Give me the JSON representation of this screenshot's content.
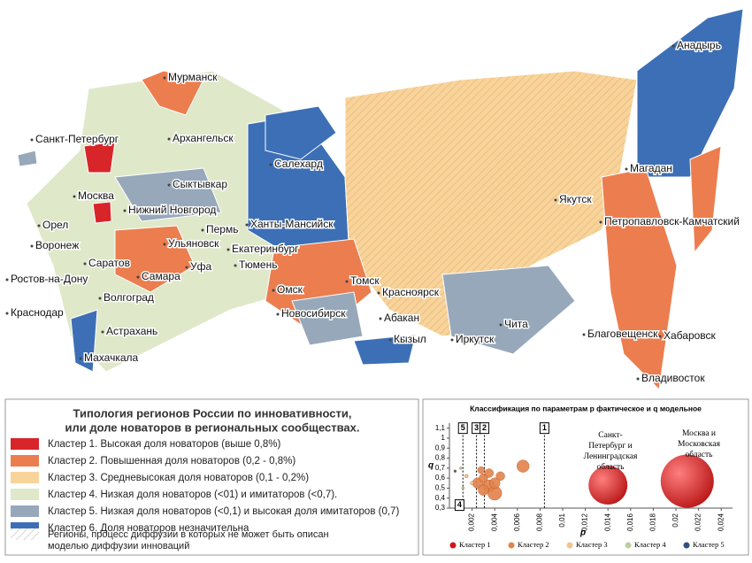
{
  "map_labels": [
    "Мурманск",
    "Санкт-Петербург",
    "Архангельск",
    "Салехард",
    "Анадырь",
    "Москва",
    "Сыктывкар",
    "Нижний Новгород",
    "Ханты-Мансийск",
    "Магадан",
    "Якутск",
    "Орел",
    "Пермь",
    "Воронеж",
    "Ульяновск",
    "Екатеринбург",
    "Петропавловск-Камчатский",
    "Саратов",
    "Уфа",
    "Тюмень",
    "Ростов-на-Дону",
    "Самара",
    "Омск",
    "Томск",
    "Волгоград",
    "Красноярск",
    "Краснодар",
    "Новосибирск",
    "Абакан",
    "Чита",
    "Астрахань",
    "Хабаровск",
    "Кызыл",
    "Иркутск",
    "Благовещенск",
    "Махачкала",
    "Владивосток"
  ],
  "legend": {
    "title_lines": [
      "Типология регионов России по инновативности,",
      "или доле новаторов в региональных сообществах."
    ],
    "items": [
      {
        "label": "Кластер 1. Высокая доля новаторов (выше 0,8%)",
        "color": "#d7252a"
      },
      {
        "label": "Кластер 2. Повышенная доля новаторов (0,2 - 0,8%)",
        "color": "#ec7d4f"
      },
      {
        "label": "Кластер 3. Средневысокая доля новаторов (0,1 - 0,2%)",
        "color": "#f8d49b"
      },
      {
        "label": "Кластер 4. Низкая доля новаторов (<01) и имитаторов (<0,7).",
        "color": "#dfe8c9"
      },
      {
        "label": "Кластер 5. Низкая доля новаторов (<0,1)  и высокая доля имитаторов (0,7)",
        "color": "#97a8bb"
      },
      {
        "label": "Кластер 6. Доля новаторов незначительна",
        "color": "#3d6fb6"
      }
    ],
    "hatched_lines": [
      "Регионы, процесс диффузии в которых не может быть описан",
      "моделью диффузии инноваций"
    ]
  },
  "chart_data": {
    "type": "scatter",
    "title": "Классификация  по параметрам p фактическое и q модельное",
    "xlabel": "p",
    "ylabel": "q",
    "xlim": [
      0,
      0.025
    ],
    "ylim": [
      0.3,
      1.15
    ],
    "xticks": [
      {
        "value": 0.002,
        "label": "0,002"
      },
      {
        "value": 0.004,
        "label": "0,004"
      },
      {
        "value": 0.006,
        "label": "0,006"
      },
      {
        "value": 0.008,
        "label": "0,008"
      },
      {
        "value": 0.01,
        "label": "0,01"
      },
      {
        "value": 0.012,
        "label": "0,012"
      },
      {
        "value": 0.014,
        "label": "0,014"
      },
      {
        "value": 0.016,
        "label": "0,016"
      },
      {
        "value": 0.018,
        "label": "0,018"
      },
      {
        "value": 0.02,
        "label": "0,02"
      },
      {
        "value": 0.022,
        "label": "0,022"
      },
      {
        "value": 0.024,
        "label": "0,024"
      }
    ],
    "yticks": [
      {
        "value": 0.3,
        "label": "0,3"
      },
      {
        "value": 0.4,
        "label": "0,4"
      },
      {
        "value": 0.5,
        "label": "0,5"
      },
      {
        "value": 0.6,
        "label": "0,6"
      },
      {
        "value": 0.7,
        "label": "0,7"
      },
      {
        "value": 0.8,
        "label": "0,8"
      },
      {
        "value": 0.9,
        "label": "0,9"
      },
      1,
      {
        "value": 1.1,
        "label": "1,1"
      }
    ],
    "series": [
      {
        "name": "Кластер 1",
        "color": "#d0161b",
        "x": [
          0.014,
          0.021
        ],
        "values": [
          0.53,
          0.57
        ],
        "sizes": [
          22,
          30
        ]
      },
      {
        "name": "Кластер 2",
        "color": "#e4824a",
        "x": [
          0.0025,
          0.003,
          0.0035,
          0.004,
          0.0045,
          0.003,
          0.0065,
          0.0035,
          0.0028,
          0.004
        ],
        "values": [
          0.55,
          0.6,
          0.52,
          0.45,
          0.62,
          0.48,
          0.72,
          0.65,
          0.68,
          0.55
        ],
        "sizes": [
          6,
          5,
          7,
          8,
          5,
          6,
          7,
          5,
          4,
          6
        ]
      },
      {
        "name": "Кластер 3",
        "color": "#f3c48a",
        "x": [
          0.0015,
          0.002
        ],
        "values": [
          0.62,
          0.55
        ],
        "sizes": [
          2,
          2
        ]
      },
      {
        "name": "Кластер 4",
        "color": "#b9cfa0",
        "x": [
          0.001,
          0.0012
        ],
        "values": [
          0.7,
          0.5
        ],
        "sizes": [
          1.5,
          1.5
        ]
      },
      {
        "name": "Кластер 5",
        "color": "#2f4f7f",
        "x": [
          0.0005
        ],
        "values": [
          0.67
        ],
        "sizes": [
          1.5
        ]
      }
    ],
    "annotations": [
      {
        "label": "5",
        "x": 0.0008,
        "y": 1.1
      },
      {
        "label": "3",
        "x": 0.002,
        "y": 1.1
      },
      {
        "label": "2",
        "x": 0.0027,
        "y": 1.1
      },
      {
        "label": "1",
        "x": 0.008,
        "y": 1.1
      },
      {
        "label": "4",
        "x": 0.0005,
        "y": 0.33
      }
    ],
    "notes": [
      "Санкт-",
      "Петербург и",
      "Ленинградская",
      "область",
      "Москва и",
      "Московская",
      "область"
    ]
  }
}
